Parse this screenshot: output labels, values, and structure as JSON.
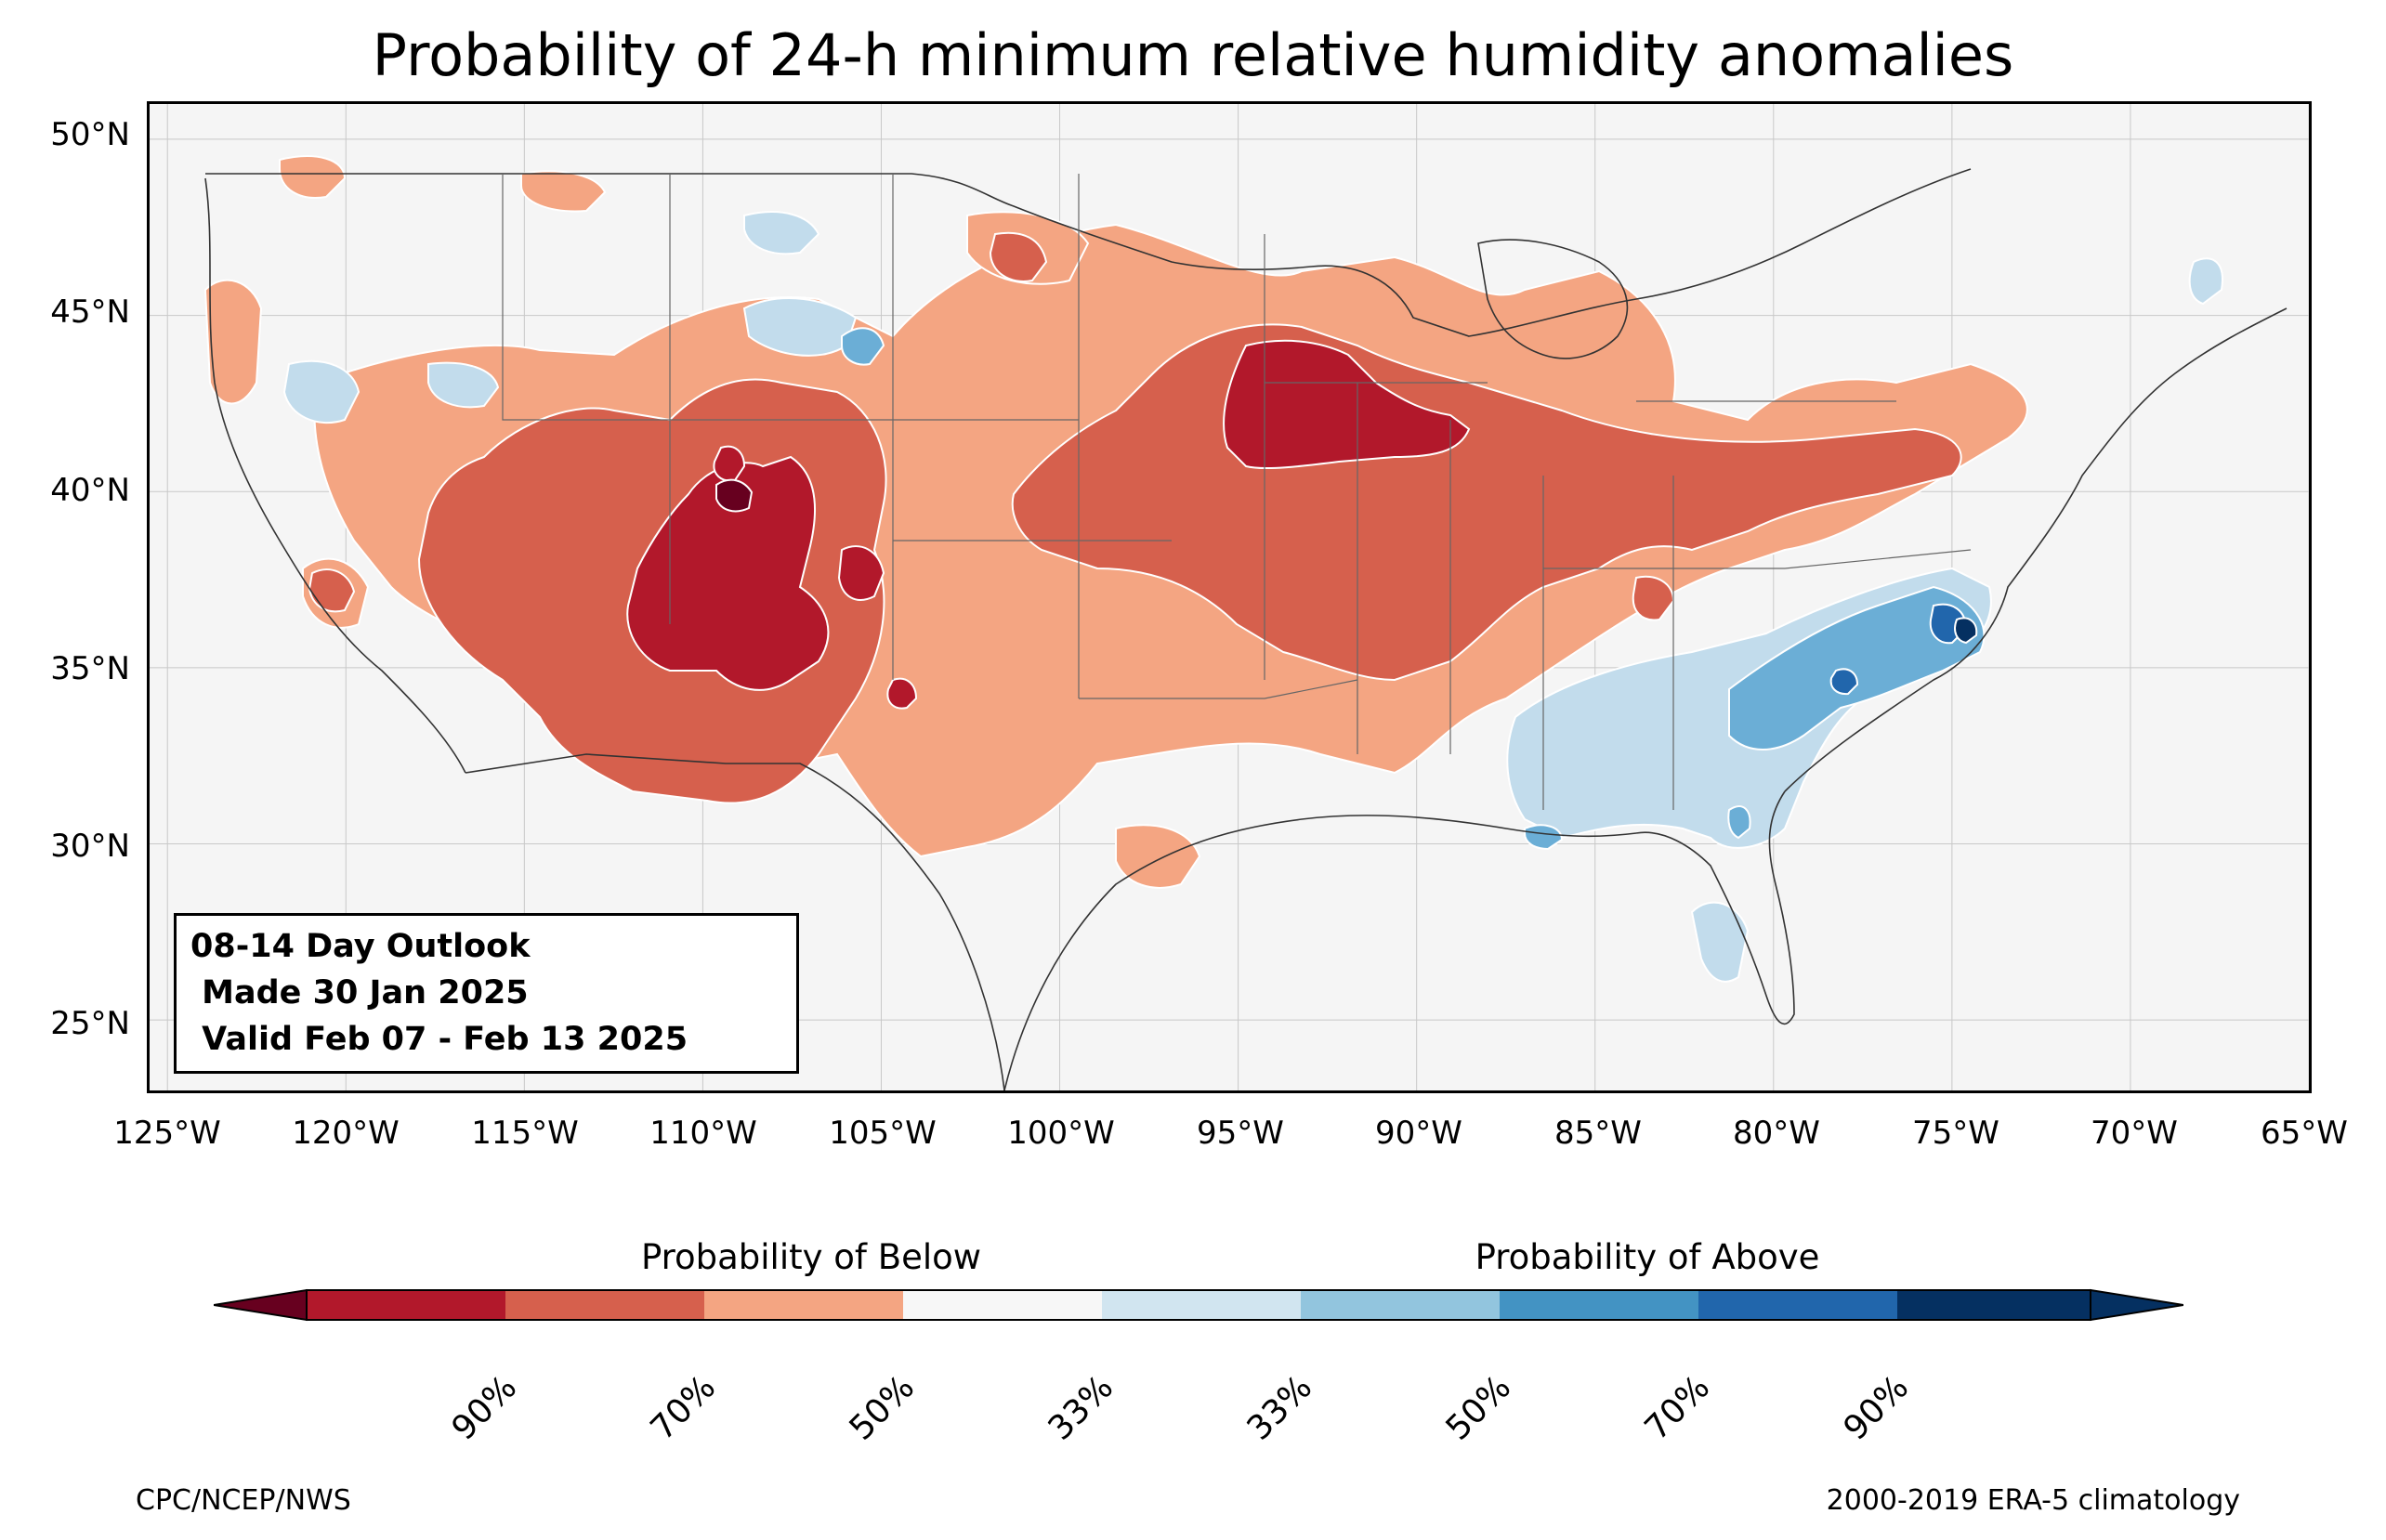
{
  "title": "Probability of 24-h minimum relative humidity anomalies",
  "map": {
    "lat_labels": [
      "50°N",
      "45°N",
      "40°N",
      "35°N",
      "30°N",
      "25°N"
    ],
    "lon_labels": [
      "125°W",
      "120°W",
      "115°W",
      "110°W",
      "105°W",
      "100°W",
      "95°W",
      "90°W",
      "85°W",
      "80°W",
      "75°W",
      "70°W",
      "65°W"
    ],
    "extent": {
      "lon_min": -125.5,
      "lon_max": -65,
      "lat_min": 23,
      "lat_max": 51
    },
    "colors": {
      "background": "#f5f5f5",
      "below_90": "#67001f",
      "below_70": "#b2182b",
      "below_50": "#d6604d",
      "below_33": "#f4a582",
      "near_normal": "#f7f7f7",
      "above_33": "#92c5de",
      "above_50": "#4393c3",
      "above_70": "#2166ac",
      "above_90": "#053061"
    }
  },
  "info_box": {
    "line1": "08-14 Day Outlook",
    "line2": " Made 30 Jan 2025",
    "line3": " Valid Feb 07 - Feb 13 2025"
  },
  "colorbar": {
    "below_label": "Probability of Below",
    "above_label": "Probability of Above",
    "ticks": [
      "90%",
      "70%",
      "50%",
      "33%",
      "33%",
      "50%",
      "70%",
      "90%"
    ],
    "colors": [
      "#67001f",
      "#b2182b",
      "#d6604d",
      "#f4a582",
      "#f7f7f7",
      "#d1e5f0",
      "#92c5de",
      "#4393c3",
      "#2166ac",
      "#053061"
    ]
  },
  "footer": {
    "left": "CPC/NCEP/NWS",
    "right": "2000-2019 ERA-5 climatology"
  }
}
